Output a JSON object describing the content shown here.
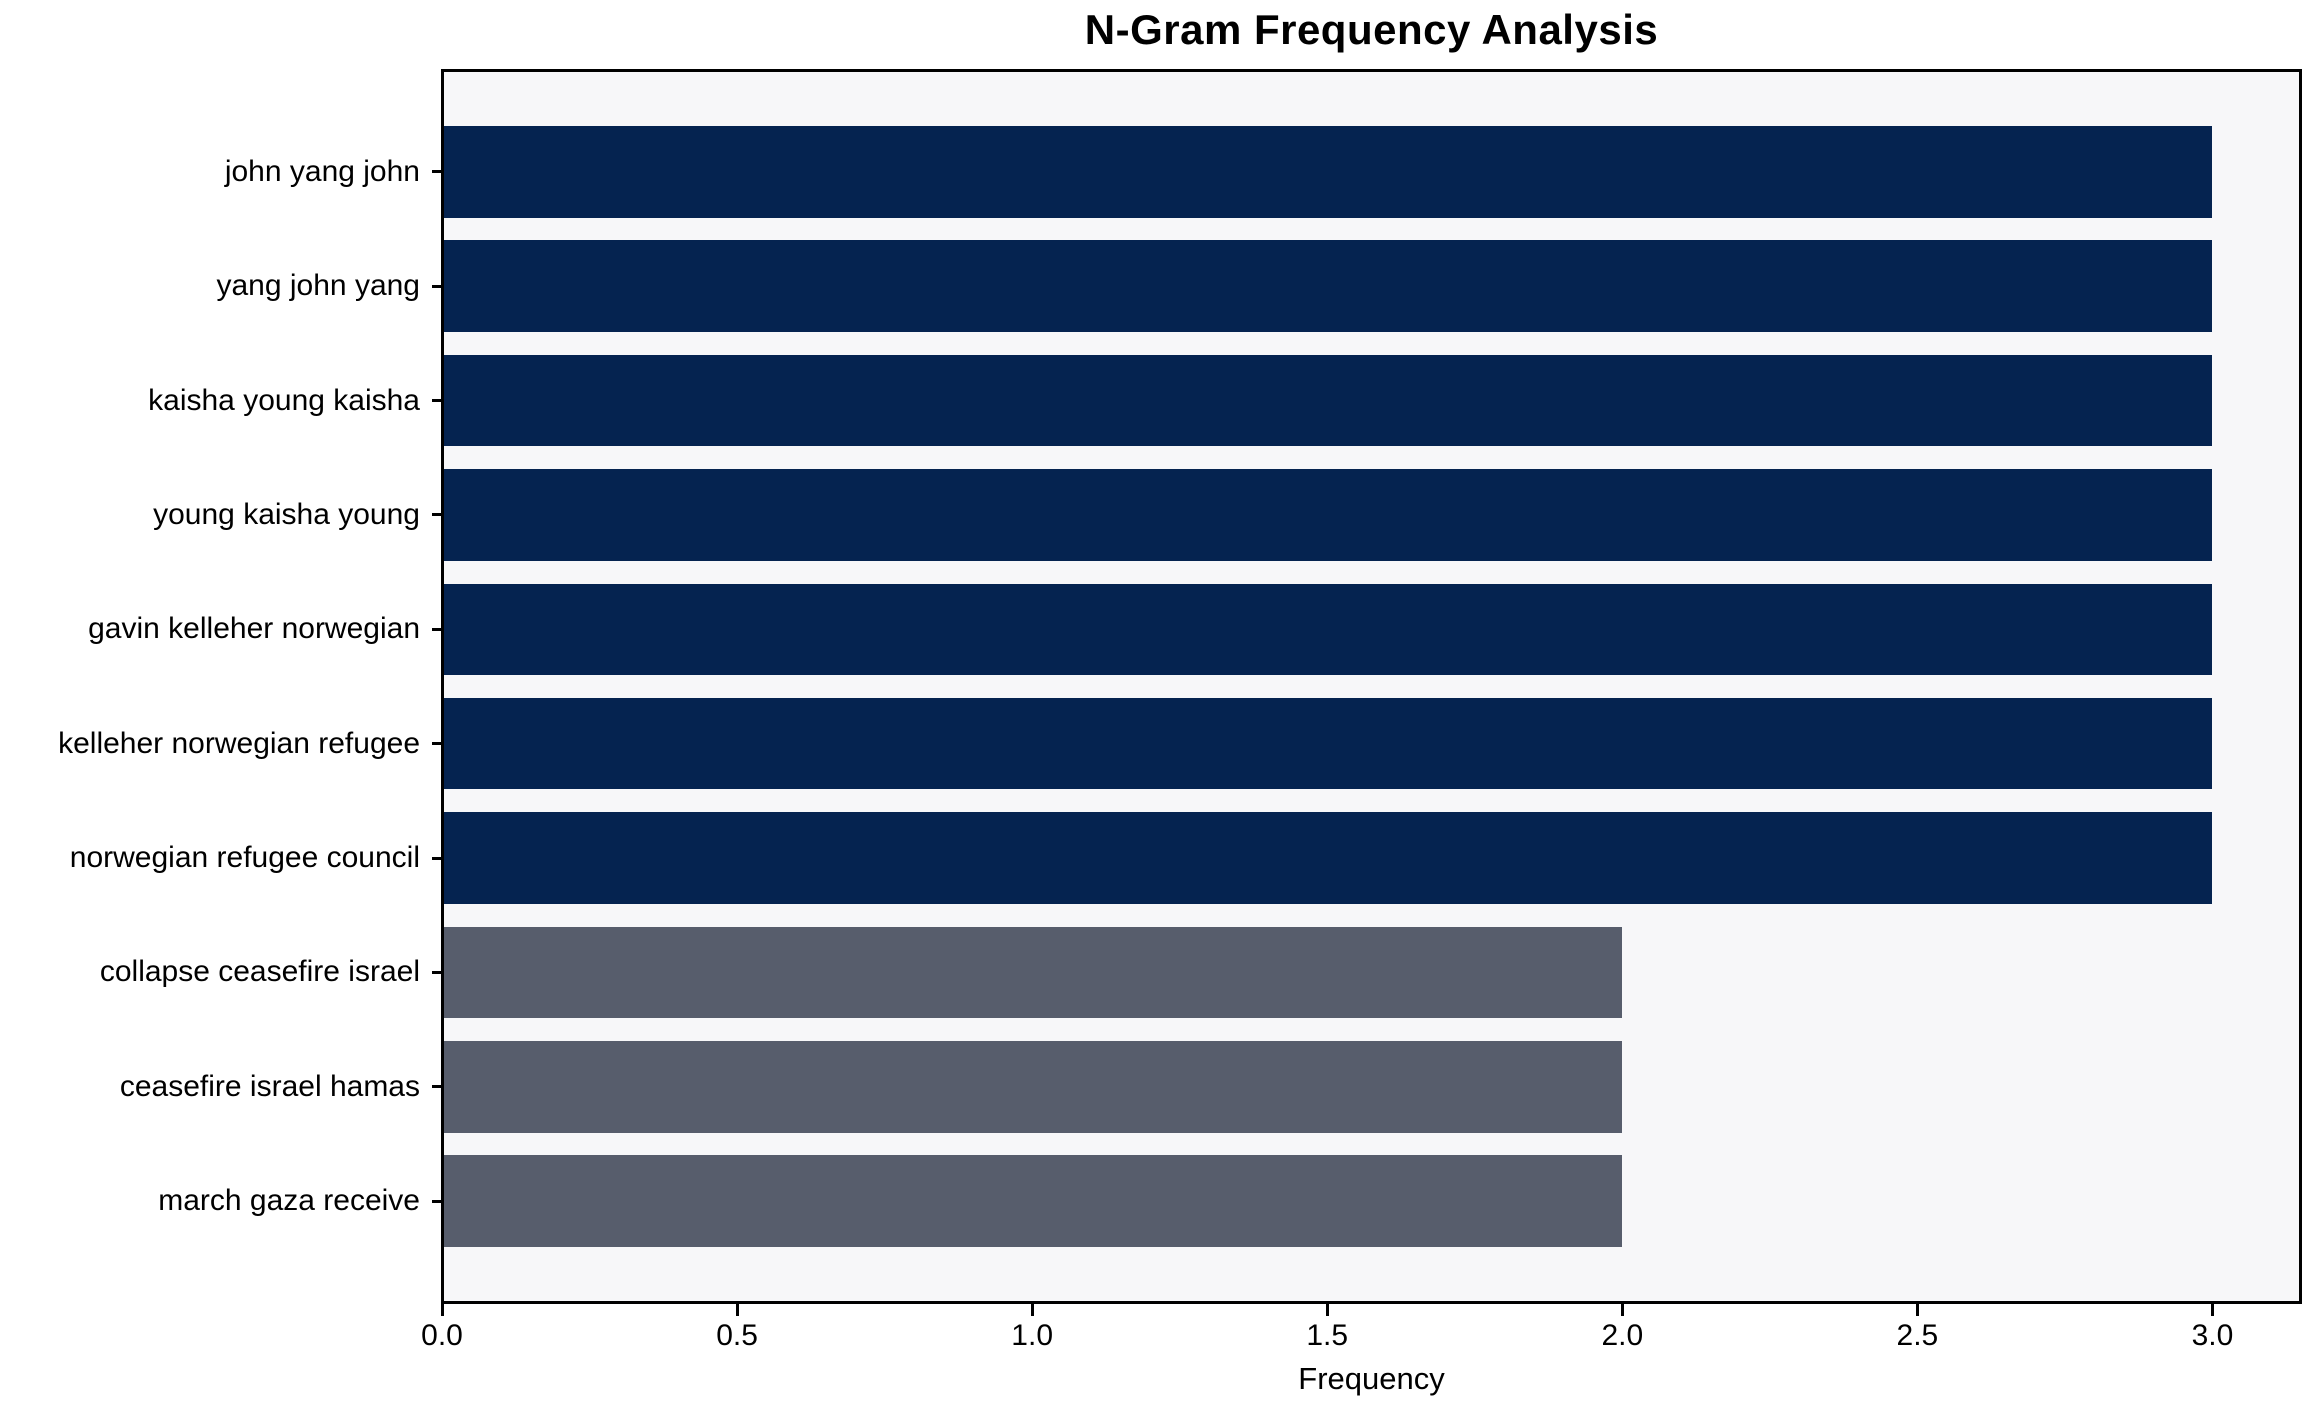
{
  "chart_data": {
    "type": "bar",
    "orientation": "horizontal",
    "title": "N-Gram Frequency Analysis",
    "xlabel": "Frequency",
    "ylabel": "",
    "categories": [
      "john yang john",
      "yang john yang",
      "kaisha young kaisha",
      "young kaisha young",
      "gavin kelleher norwegian",
      "kelleher norwegian refugee",
      "norwegian refugee council",
      "collapse ceasefire israel",
      "ceasefire israel hamas",
      "march gaza receive"
    ],
    "values": [
      3,
      3,
      3,
      3,
      3,
      3,
      3,
      2,
      2,
      2
    ],
    "bar_colors": [
      "#052350",
      "#052350",
      "#052350",
      "#052350",
      "#052350",
      "#052350",
      "#052350",
      "#575d6c",
      "#575d6c",
      "#575d6c"
    ],
    "xlim": [
      0,
      3.15
    ],
    "xticks": [
      {
        "value": 0.0,
        "label": "0.0"
      },
      {
        "value": 0.5,
        "label": "0.5"
      },
      {
        "value": 1.0,
        "label": "1.0"
      },
      {
        "value": 1.5,
        "label": "1.5"
      },
      {
        "value": 2.0,
        "label": "2.0"
      },
      {
        "value": 2.5,
        "label": "2.5"
      },
      {
        "value": 3.0,
        "label": "3.0"
      }
    ],
    "grid": false,
    "legend": null,
    "colors": {
      "bar_high_frequency": "#052350",
      "bar_low_frequency": "#575d6c",
      "plot_background": "#f7f7f9",
      "page_background": "#ffffff",
      "axis": "#000000",
      "text": "#000000"
    }
  }
}
